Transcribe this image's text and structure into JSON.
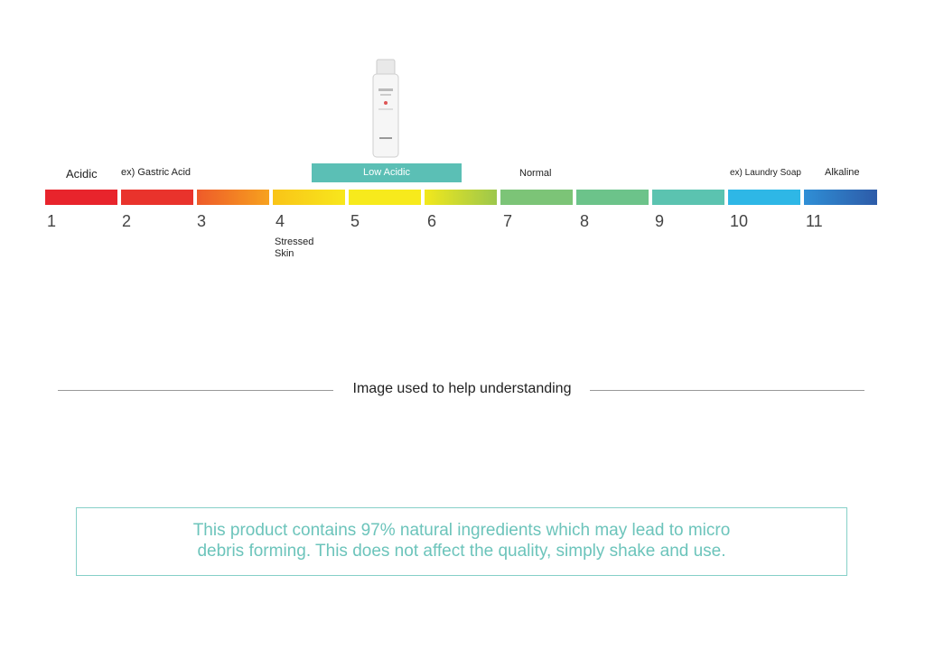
{
  "scale_labels": [
    "Acidic",
    "ex) Gastric Acid",
    "Low Acidic",
    "Normal",
    "ex) Laundry Soap",
    "Alkaline"
  ],
  "scale_numbers": [
    "1",
    "2",
    "3",
    "4",
    "5",
    "6",
    "7",
    "8",
    "9",
    "10",
    "11"
  ],
  "annotation": "Stressed Skin",
  "caption": "Image used to help understanding",
  "notice": "This product contains 97% natural ingredients which may lead to micro debris forming. This does not affect the quality, simply shake and use."
}
